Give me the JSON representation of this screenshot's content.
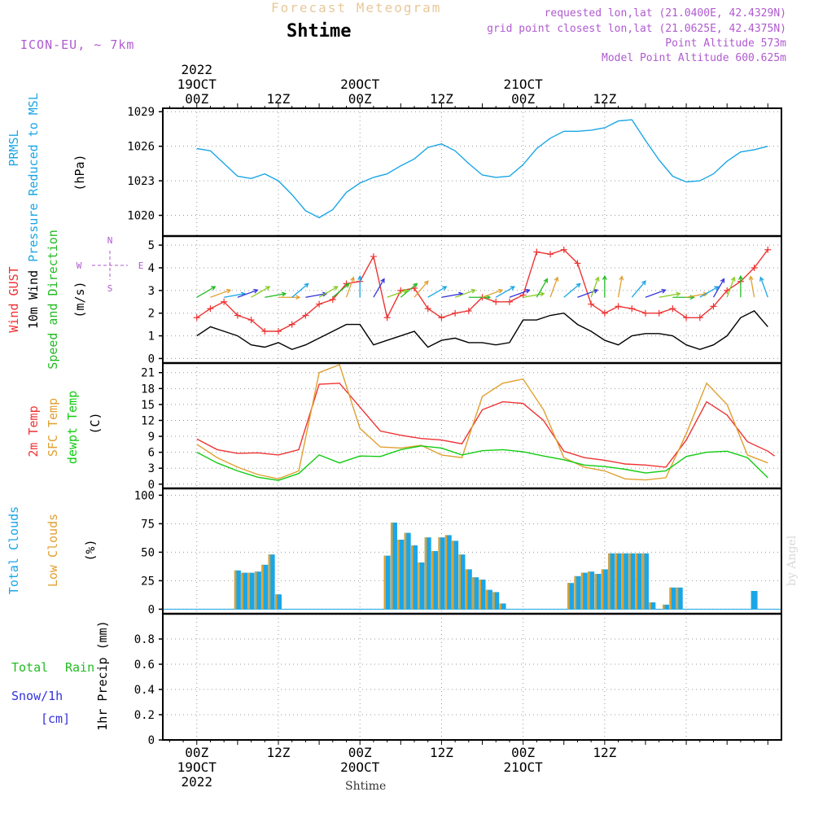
{
  "header": {
    "product_title": "Forecast Meteogram",
    "location": "Shtime",
    "model": "ICON-EU, ~ 7km",
    "requested": "requested lon,lat (21.0400E, 42.4329N)",
    "grid_point": "grid point closest lon,lat (21.0625E, 42.4375N)",
    "point_altitude": "Point Altitude 573m",
    "model_altitude": "Model Point Altitude 600.625m",
    "watermark": "by Angel",
    "footer_label": "Shtime"
  },
  "colors": {
    "pressure": "#1aa6e6",
    "gust": "#ee3333",
    "wind": "#000000",
    "direction": "#22bb22",
    "temp2m": "#ee3333",
    "sfc": "#e0a030",
    "dewpoint": "#11cc11",
    "total_clouds": "#1aa6e6",
    "low_clouds": "#e0a030",
    "rain": "#22bb22",
    "snow": "#3333dd",
    "title": "#e8c89a",
    "meta": "#b05ad0"
  },
  "chart_data": [
    {
      "type": "line",
      "id": "pressure",
      "title": "",
      "ylabels": [
        "PRMSL",
        "Pressure Reduced to MSL"
      ],
      "unit": "(hPa)",
      "ylim": [
        1018.2,
        1029.3
      ],
      "yticks": [
        1020,
        1023,
        1026,
        1029
      ],
      "series": [
        {
          "name": "PRMSL",
          "x": [
            0,
            2,
            4,
            6,
            8,
            10,
            12,
            14,
            16,
            18,
            20,
            22,
            24,
            26,
            28,
            30,
            32,
            34,
            36,
            38,
            40,
            42,
            44,
            46,
            48,
            50,
            52,
            54,
            56,
            58,
            60,
            62,
            64,
            66,
            68,
            70
          ],
          "values": [
            1025.8,
            1025.6,
            1024.5,
            1023.4,
            1023.2,
            1023.6,
            1023.0,
            1021.8,
            1020.4,
            1019.8,
            1020.5,
            1022.0,
            1022.8,
            1023.3,
            1023.6,
            1024.3,
            1024.9,
            1025.9,
            1026.2,
            1025.6,
            1024.5,
            1023.5,
            1023.3,
            1023.4,
            1024.4,
            1025.8,
            1026.7,
            1027.3,
            1027.3,
            1027.4,
            1027.6,
            1028.2,
            1028.3,
            1026.5,
            1024.8,
            1023.4
          ],
          "extra": [
            [
              72,
              1022.9
            ],
            [
              74,
              1023.0
            ],
            [
              76,
              1023.6
            ],
            [
              78,
              1024.7
            ],
            [
              80,
              1025.5
            ],
            [
              82,
              1025.7
            ],
            [
              84,
              1026.0
            ]
          ]
        }
      ]
    },
    {
      "type": "line",
      "id": "wind",
      "title": "",
      "ylabels": [
        "Wind GUST",
        "10m Wind",
        "Speed and Direction"
      ],
      "unit": "(m/s)",
      "ylim": [
        -0.2,
        5.4
      ],
      "yticks": [
        0,
        1,
        2,
        3,
        4,
        5
      ],
      "compass": [
        "N",
        "E",
        "S",
        "W"
      ],
      "series": [
        {
          "name": "Wind GUST",
          "x": [
            0,
            2,
            4,
            6,
            8,
            10,
            12,
            14,
            16,
            18,
            20,
            22,
            24,
            26,
            28,
            30,
            32,
            34,
            36,
            38,
            40,
            42,
            44,
            46,
            48,
            50,
            52,
            54,
            56,
            58,
            60,
            62,
            64,
            66,
            68,
            70,
            72,
            74,
            76,
            78,
            80,
            82,
            84
          ],
          "values": [
            1.8,
            2.2,
            2.5,
            1.9,
            1.7,
            1.2,
            1.2,
            1.5,
            1.9,
            2.4,
            2.6,
            3.3,
            3.4,
            4.5,
            1.8,
            3.0,
            3.1,
            2.2,
            1.8,
            2.0,
            2.1,
            2.7,
            2.5,
            2.5,
            2.8,
            4.7,
            4.6,
            4.8,
            4.2,
            2.4,
            2.0,
            2.3,
            2.2,
            2.0,
            2.0,
            2.2,
            1.8,
            1.8,
            2.3,
            3.0,
            3.4,
            4.0,
            4.8
          ]
        },
        {
          "name": "10m Wind",
          "x": [
            0,
            2,
            4,
            6,
            8,
            10,
            12,
            14,
            16,
            18,
            20,
            22,
            24,
            26,
            28,
            30,
            32,
            34,
            36,
            38,
            40,
            42,
            44,
            46,
            48,
            50,
            52,
            54,
            56,
            58,
            60,
            62,
            64,
            66,
            68,
            70,
            72,
            74,
            76,
            78,
            80,
            82,
            84
          ],
          "values": [
            1.0,
            1.4,
            1.2,
            1.0,
            0.6,
            0.5,
            0.7,
            0.4,
            0.6,
            0.9,
            1.2,
            1.5,
            1.5,
            0.6,
            0.8,
            1.0,
            1.2,
            0.5,
            0.8,
            0.9,
            0.7,
            0.7,
            0.6,
            0.7,
            1.7,
            1.7,
            1.9,
            2.0,
            1.5,
            1.2,
            0.8,
            0.6,
            1.0,
            1.1,
            1.1,
            1.0,
            0.6,
            0.4,
            0.6,
            1.0,
            1.8,
            2.1,
            1.4
          ]
        }
      ],
      "direction_barbs_deg": [
        240,
        250,
        260,
        250,
        240,
        260,
        270,
        230,
        260,
        240,
        230,
        200,
        180,
        210,
        250,
        230,
        220,
        240,
        260,
        250,
        270,
        250,
        240,
        250,
        260,
        210,
        200,
        230,
        250,
        200,
        180,
        190,
        220,
        250,
        260,
        270,
        260,
        240,
        210,
        200,
        180,
        170,
        160
      ]
    },
    {
      "type": "line",
      "id": "temperature",
      "title": "",
      "ylabels": [
        "2m Temp",
        "SFC Temp",
        "dewpt Temp"
      ],
      "unit": "(C)",
      "ylim": [
        -0.8,
        22.8
      ],
      "yticks": [
        0,
        3,
        6,
        9,
        12,
        15,
        18,
        21
      ],
      "series": [
        {
          "name": "2m Temp",
          "x": [
            0,
            3,
            6,
            9,
            12,
            15,
            18,
            21,
            24,
            27,
            30,
            33,
            36,
            39,
            42,
            45,
            48,
            51,
            54,
            57,
            60,
            63,
            66,
            69,
            72,
            75,
            78,
            81,
            84
          ],
          "values": [
            8.5,
            6.5,
            5.8,
            5.9,
            5.5,
            6.5,
            18.8,
            19.0,
            14.5,
            10.0,
            9.2,
            8.6,
            8.3,
            7.6,
            14.0,
            15.5,
            15.2,
            12.0,
            6.2,
            5.0,
            4.5,
            3.8,
            3.6,
            3.2,
            8.3,
            15.5,
            13.0,
            8.0,
            6.2
          ],
          "extra": [
            [
              85,
              5.3
            ]
          ]
        },
        {
          "name": "SFC Temp",
          "x": [
            0,
            3,
            6,
            9,
            12,
            15,
            18,
            21,
            24,
            27,
            30,
            33,
            36,
            39,
            42,
            45,
            48,
            51,
            54,
            57,
            60,
            63,
            66,
            69,
            72,
            75,
            78,
            81,
            84
          ],
          "values": [
            7.5,
            5.0,
            3.2,
            1.8,
            1.0,
            2.5,
            21.0,
            22.5,
            10.5,
            7.0,
            6.8,
            7.3,
            5.5,
            5.0,
            16.5,
            19.0,
            19.8,
            14.0,
            5.0,
            3.2,
            2.5,
            1.0,
            0.8,
            1.2,
            9.5,
            19.0,
            15.0,
            5.5,
            4.0
          ]
        },
        {
          "name": "dewpt Temp",
          "x": [
            0,
            3,
            6,
            9,
            12,
            15,
            18,
            21,
            24,
            27,
            30,
            33,
            36,
            39,
            42,
            45,
            48,
            51,
            54,
            57,
            60,
            63,
            66,
            69,
            72,
            75,
            78,
            81,
            84
          ],
          "values": [
            6.0,
            4.0,
            2.5,
            1.3,
            0.7,
            2.0,
            5.5,
            4.0,
            5.3,
            5.2,
            6.5,
            7.2,
            6.8,
            5.5,
            6.3,
            6.5,
            6.1,
            5.3,
            4.6,
            3.6,
            3.3,
            2.8,
            2.1,
            2.5,
            5.2,
            6.0,
            6.2,
            5.0,
            1.2
          ]
        }
      ]
    },
    {
      "type": "bar",
      "id": "clouds",
      "title": "",
      "ylabels": [
        "Total Clouds",
        "Low Clouds"
      ],
      "unit": "(%)",
      "ylim": [
        -4,
        106
      ],
      "yticks": [
        0,
        25,
        50,
        75,
        100
      ],
      "series": [
        {
          "name": "Total Clouds",
          "x": [
            6,
            7,
            8,
            9,
            10,
            11,
            12,
            13,
            14,
            28,
            29,
            30,
            31,
            32,
            33,
            34,
            35,
            36,
            37,
            38,
            39,
            40,
            41,
            42,
            43,
            44,
            45,
            46,
            55,
            56,
            57,
            58,
            59,
            60,
            61,
            62,
            63,
            64,
            65,
            66,
            67,
            68,
            69,
            70,
            71,
            72,
            73,
            74,
            75,
            82
          ],
          "values": [
            34,
            32,
            32,
            33,
            39,
            48,
            13,
            0,
            0,
            47,
            76,
            61,
            67,
            56,
            41,
            63,
            51,
            63,
            65,
            60,
            48,
            35,
            28,
            26,
            17,
            15,
            5,
            0,
            23,
            29,
            32,
            33,
            31,
            35,
            49,
            49,
            49,
            49,
            49,
            49,
            6,
            0,
            4,
            19,
            19,
            0,
            0,
            0,
            0,
            16
          ]
        },
        {
          "name": "Low Clouds",
          "x": [
            6,
            7,
            8,
            9,
            10,
            11,
            12,
            28,
            29,
            30,
            31,
            32,
            33,
            34,
            35,
            36,
            37,
            38,
            39,
            40,
            41,
            42,
            43,
            44,
            45,
            55,
            56,
            57,
            58,
            59,
            60,
            61,
            62,
            63,
            64,
            65,
            66,
            67,
            69,
            70,
            71
          ],
          "values": [
            34,
            32,
            32,
            33,
            39,
            48,
            13,
            47,
            76,
            61,
            67,
            56,
            41,
            63,
            51,
            63,
            65,
            60,
            48,
            35,
            28,
            26,
            17,
            15,
            5,
            23,
            29,
            32,
            33,
            31,
            35,
            49,
            49,
            49,
            49,
            49,
            49,
            6,
            4,
            19,
            19
          ]
        }
      ]
    },
    {
      "type": "bar",
      "id": "precip",
      "title": "",
      "ylabels": [
        "1hr Precip (mm)"
      ],
      "legend": [
        "Total Rain",
        "Snow/1h",
        "[cm]"
      ],
      "unit": "",
      "ylim": [
        0,
        1.0
      ],
      "yticks": [
        0,
        0.2,
        0.4,
        0.6,
        0.8
      ],
      "series": [
        {
          "name": "Total Rain",
          "values": []
        },
        {
          "name": "Snow/1h",
          "values": []
        }
      ]
    }
  ],
  "time_axis": {
    "xlim": [
      -5,
      86
    ],
    "top_labels": [
      {
        "h": 0,
        "lines": [
          "2022",
          "19OCT",
          "00Z"
        ]
      },
      {
        "h": 12,
        "lines": [
          "12Z"
        ]
      },
      {
        "h": 24,
        "lines": [
          "20OCT",
          "00Z"
        ]
      },
      {
        "h": 36,
        "lines": [
          "12Z"
        ]
      },
      {
        "h": 48,
        "lines": [
          "21OCT",
          "00Z"
        ]
      },
      {
        "h": 60,
        "lines": [
          "12Z"
        ]
      }
    ],
    "bottom_labels": [
      {
        "h": 0,
        "lines": [
          "00Z",
          "19OCT",
          "2022"
        ]
      },
      {
        "h": 12,
        "lines": [
          "12Z"
        ]
      },
      {
        "h": 24,
        "lines": [
          "00Z",
          "20OCT"
        ]
      },
      {
        "h": 36,
        "lines": [
          "12Z"
        ]
      },
      {
        "h": 48,
        "lines": [
          "00Z",
          "21OCT"
        ]
      },
      {
        "h": 60,
        "lines": [
          "12Z"
        ]
      }
    ],
    "grid_hours": [
      0,
      12,
      24,
      36,
      48,
      60,
      72
    ]
  }
}
